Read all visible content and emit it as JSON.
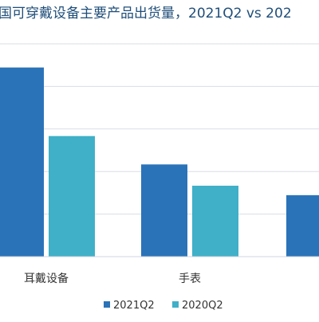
{
  "chart_data": {
    "type": "bar",
    "title": "国可穿戴设备主要产品出货量，2021Q2 vs 202",
    "categories": [
      "耳戴设备",
      "手表",
      ""
    ],
    "series": [
      {
        "name": "2021Q2",
        "color": "#2a73b8",
        "values": [
          4.0,
          1.95,
          1.3
        ]
      },
      {
        "name": "2020Q2",
        "color": "#3fb0c8",
        "values": [
          2.55,
          1.5,
          null
        ]
      }
    ],
    "ylim": [
      0,
      4.5
    ],
    "gridlines": 5,
    "legend_position": "bottom",
    "grid": true
  }
}
